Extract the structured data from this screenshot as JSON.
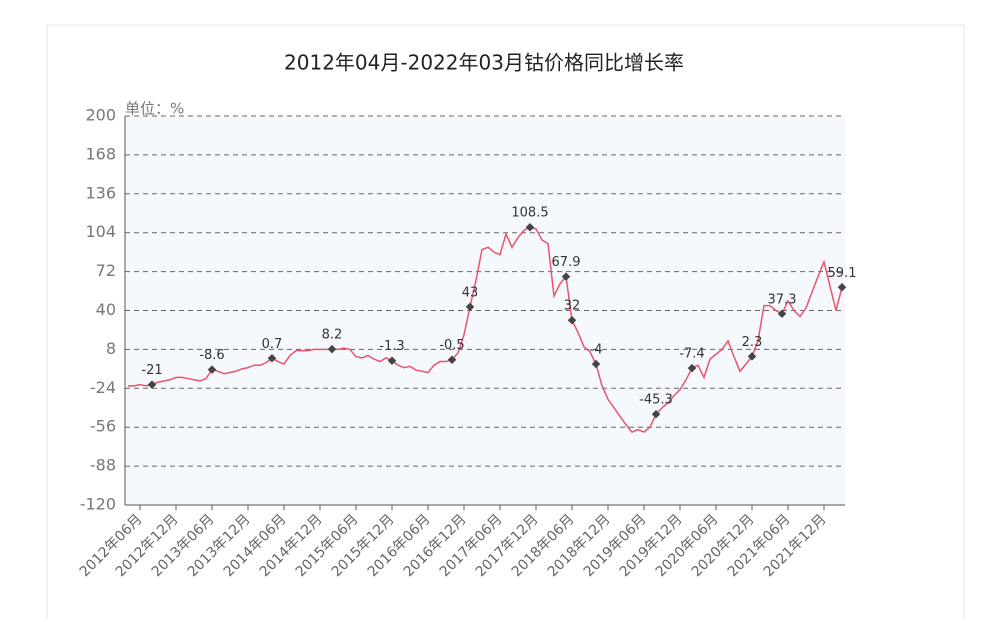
{
  "chart_data": {
    "type": "line",
    "title": "2012年04月-2022年03月钴价格同比增长率",
    "y_label": "单位：%",
    "categories": [
      null,
      null,
      "2012年06月",
      null,
      null,
      null,
      null,
      null,
      "2012年12月",
      null,
      null,
      null,
      null,
      null,
      "2013年06月",
      null,
      null,
      null,
      null,
      null,
      "2013年12月",
      null,
      null,
      null,
      null,
      null,
      "2014年06月",
      null,
      null,
      null,
      null,
      null,
      "2014年12月",
      null,
      null,
      null,
      null,
      null,
      "2015年06月",
      null,
      null,
      null,
      null,
      null,
      "2015年12月",
      null,
      null,
      null,
      null,
      null,
      "2016年06月",
      null,
      null,
      null,
      null,
      null,
      "2016年12月",
      null,
      null,
      null,
      null,
      null,
      "2017年06月",
      null,
      null,
      null,
      null,
      null,
      "2017年12月",
      null,
      null,
      null,
      null,
      null,
      "2018年06月",
      null,
      null,
      null,
      null,
      null,
      "2018年12月",
      null,
      null,
      null,
      null,
      null,
      "2019年06月",
      null,
      null,
      null,
      null,
      null,
      "2019年12月",
      null,
      null,
      null,
      null,
      null,
      "2020年06月",
      null,
      null,
      null,
      null,
      null,
      "2020年12月",
      null,
      null,
      null,
      null,
      null,
      "2021年06月",
      null,
      null,
      null,
      null,
      null,
      "2021年12月",
      null,
      null,
      null
    ],
    "series": [
      {
        "color": "#e8556a",
        "values": [
          -22,
          -22,
          -21,
          -22,
          -21,
          -19,
          -18,
          -17,
          -15,
          -15,
          -16,
          -17,
          -18,
          -16,
          -8.6,
          -10,
          -12,
          -11,
          -10,
          -8,
          -7,
          -5,
          -5,
          -3,
          0.7,
          -2,
          -4,
          3,
          7,
          7,
          7,
          8,
          8,
          8,
          8.2,
          8,
          9,
          8,
          2,
          1,
          3,
          0,
          -2,
          1,
          -1.3,
          -5,
          -7,
          -6,
          -9,
          -10,
          -11,
          -5,
          -2,
          -2,
          -0.5,
          5,
          20,
          43,
          65,
          90,
          92,
          88,
          86,
          103,
          92,
          100,
          106,
          108.5,
          107,
          98,
          95,
          52,
          62,
          67.9,
          32,
          22,
          10,
          6,
          -4,
          -22,
          -33,
          -40,
          -47,
          -54,
          -60,
          -58,
          -60,
          -56,
          -45.3,
          -40,
          -36,
          -30,
          -25,
          -17,
          -7.4,
          -5,
          -15,
          0,
          4,
          8,
          15,
          2,
          -10,
          -4,
          2.3,
          15,
          44,
          44,
          40,
          37.3,
          48,
          40,
          35,
          42,
          55,
          68,
          80,
          60,
          40,
          59.1
        ]
      },
      {
        "color": "#444444",
        "values": [
          null,
          null,
          null,
          null,
          -21,
          null,
          null,
          null,
          null,
          null,
          null,
          null,
          null,
          null,
          -8.6,
          null,
          null,
          null,
          null,
          null,
          null,
          null,
          null,
          null,
          0.7,
          null,
          null,
          null,
          null,
          null,
          null,
          null,
          null,
          null,
          8.2,
          null,
          null,
          null,
          null,
          null,
          null,
          null,
          null,
          null,
          -1.3,
          null,
          null,
          null,
          null,
          null,
          null,
          null,
          null,
          null,
          -0.5,
          null,
          null,
          43,
          null,
          null,
          null,
          null,
          null,
          null,
          null,
          null,
          null,
          108.5,
          null,
          null,
          null,
          null,
          null,
          67.9,
          32,
          null,
          null,
          null,
          -4,
          null,
          null,
          null,
          null,
          null,
          null,
          null,
          null,
          null,
          -45.3,
          null,
          null,
          null,
          null,
          null,
          -7.4,
          null,
          null,
          null,
          null,
          null,
          null,
          null,
          null,
          null,
          2.3,
          null,
          null,
          null,
          null,
          37.3,
          null,
          null,
          null,
          null,
          null,
          null,
          null,
          null,
          null,
          59.1
        ]
      }
    ],
    "ylim": [
      -120,
      200
    ],
    "yticks": [
      200,
      168,
      136,
      104,
      72,
      40,
      8,
      -24,
      -56,
      -88,
      -120
    ],
    "grid": true
  }
}
